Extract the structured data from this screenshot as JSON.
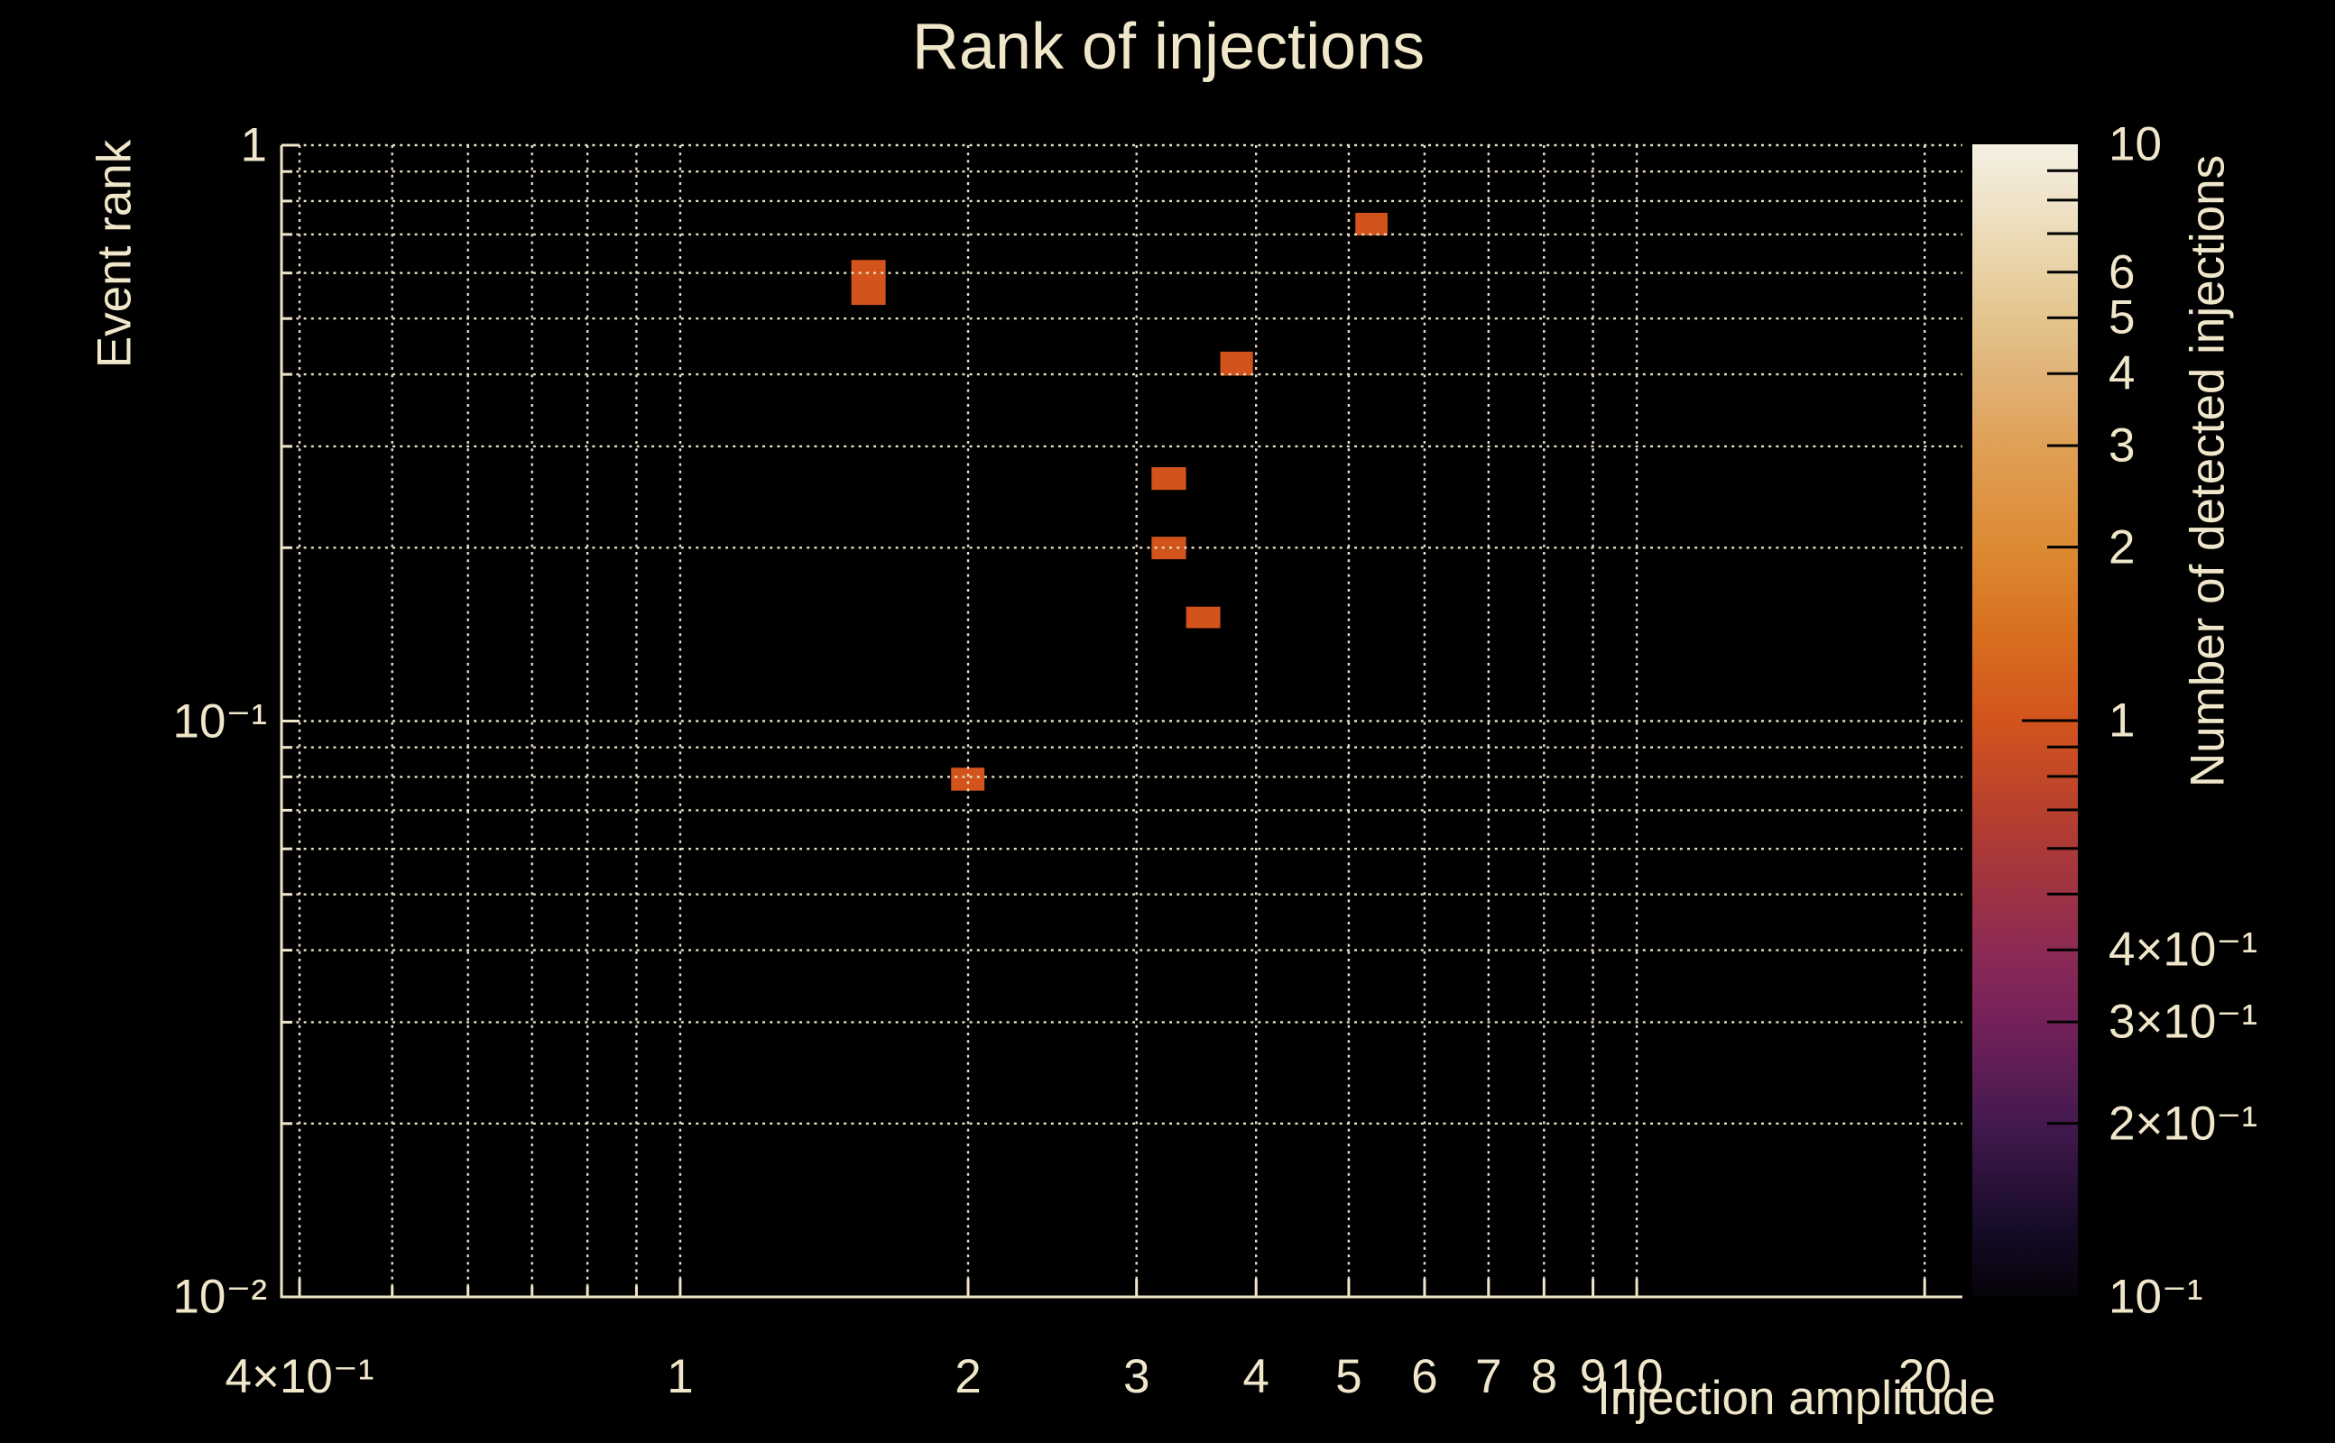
{
  "title": "Rank of injections",
  "axes": {
    "x_title": "Injection amplitude",
    "y_title": "Event rank",
    "colorbar_title": "Number of detected injections"
  },
  "colors": {
    "background": "#000000",
    "text": "#f0e7cb",
    "grid": "#e9e0c4",
    "spine": "#efe6c8",
    "bin_fill": "#d2531b",
    "colorbar_tick": "#000000"
  },
  "chart_data": {
    "type": "heatmap",
    "title": "Rank of injections",
    "xlabel": "Injection amplitude",
    "ylabel": "Event rank",
    "zlabel": "Number of detected injections",
    "x_scale": "log",
    "y_scale": "log",
    "z_scale": "log",
    "xlim": [
      0.383,
      21.9
    ],
    "ylim": [
      0.00996,
      1.0
    ],
    "zlim": [
      0.1,
      10
    ],
    "grid": "dotted major+minor, both axes",
    "legend": "colorbar right",
    "x_ticks_labeled": [
      {
        "value": 0.4,
        "label": "4×10⁻¹"
      },
      {
        "value": 1,
        "label": "1"
      },
      {
        "value": 2,
        "label": "2"
      },
      {
        "value": 3,
        "label": "3"
      },
      {
        "value": 4,
        "label": "4"
      },
      {
        "value": 5,
        "label": "5"
      },
      {
        "value": 6,
        "label": "6"
      },
      {
        "value": 7,
        "label": "7"
      },
      {
        "value": 8,
        "label": "8"
      },
      {
        "value": 9,
        "label": "9"
      },
      {
        "value": 10,
        "label": "10"
      },
      {
        "value": 20,
        "label": "20"
      }
    ],
    "x_ticks_minor": [
      0.5,
      0.6,
      0.7,
      0.8,
      0.9
    ],
    "y_ticks_labeled": [
      {
        "value": 1,
        "label": "1"
      },
      {
        "value": 0.1,
        "label": "10⁻¹"
      },
      {
        "value": 0.01,
        "label": "10⁻²"
      }
    ],
    "y_ticks_minor": [
      0.9,
      0.8,
      0.7,
      0.6,
      0.5,
      0.4,
      0.3,
      0.2,
      0.09,
      0.08,
      0.07,
      0.06,
      0.05,
      0.04,
      0.03,
      0.02
    ],
    "colorbar_ticks_labeled": [
      {
        "value": 10,
        "label": "10",
        "tick": false
      },
      {
        "value": 6,
        "label": "6",
        "tick": true
      },
      {
        "value": 5,
        "label": "5",
        "tick": true
      },
      {
        "value": 4,
        "label": "4",
        "tick": true
      },
      {
        "value": 3,
        "label": "3",
        "tick": true
      },
      {
        "value": 2,
        "label": "2",
        "tick": true
      },
      {
        "value": 1,
        "label": "1",
        "tick": true,
        "long": true
      },
      {
        "value": 0.4,
        "label": "4×10⁻¹",
        "tick": true
      },
      {
        "value": 0.3,
        "label": "3×10⁻¹",
        "tick": true
      },
      {
        "value": 0.2,
        "label": "2×10⁻¹",
        "tick": true
      },
      {
        "value": 0.1,
        "label": "10⁻¹",
        "tick": false
      }
    ],
    "colorbar_ticks_minor": [
      9,
      8,
      7,
      0.9,
      0.8,
      0.7,
      0.6,
      0.5
    ],
    "colorbar_gradient": [
      {
        "offset": 0.0,
        "color": "#060309"
      },
      {
        "offset": 0.06,
        "color": "#160b27"
      },
      {
        "offset": 0.15,
        "color": "#43194f"
      },
      {
        "offset": 0.24,
        "color": "#76215a"
      },
      {
        "offset": 0.301,
        "color": "#8c2a55"
      },
      {
        "offset": 0.4,
        "color": "#b03b33"
      },
      {
        "offset": 0.5,
        "color": "#d2541d"
      },
      {
        "offset": 0.575,
        "color": "#d86f1e"
      },
      {
        "offset": 0.65,
        "color": "#dd8a33"
      },
      {
        "offset": 0.74,
        "color": "#e0a057"
      },
      {
        "offset": 0.8,
        "color": "#e1b377"
      },
      {
        "offset": 0.85,
        "color": "#e4c58e"
      },
      {
        "offset": 0.9,
        "color": "#e9d4a9"
      },
      {
        "offset": 0.95,
        "color": "#efe3c9"
      },
      {
        "offset": 1.0,
        "color": "#f4f0e3"
      }
    ],
    "bins": [
      {
        "x": [
          1.51,
          1.64
        ],
        "y": [
          0.528,
          0.632
        ],
        "count": 1
      },
      {
        "x": [
          5.08,
          5.49
        ],
        "y": [
          0.697,
          0.763
        ],
        "count": 1
      },
      {
        "x": [
          3.67,
          3.97
        ],
        "y": [
          0.398,
          0.438
        ],
        "count": 1
      },
      {
        "x": [
          3.11,
          3.38
        ],
        "y": [
          0.252,
          0.276
        ],
        "count": 1
      },
      {
        "x": [
          3.11,
          3.38
        ],
        "y": [
          0.191,
          0.209
        ],
        "count": 1
      },
      {
        "x": [
          3.38,
          3.67
        ],
        "y": [
          0.145,
          0.158
        ],
        "count": 1
      },
      {
        "x": [
          1.92,
          2.08
        ],
        "y": [
          0.0757,
          0.083
        ],
        "count": 1
      }
    ]
  }
}
